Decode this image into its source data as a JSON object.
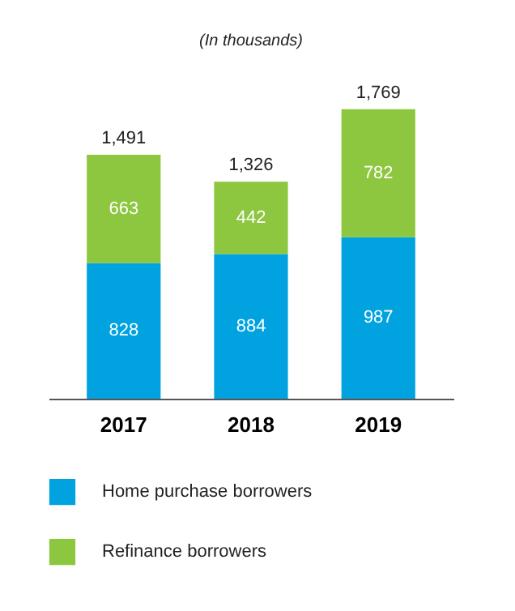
{
  "chart_data": {
    "type": "bar",
    "title": "(In thousands)",
    "categories": [
      "2017",
      "2018",
      "2019"
    ],
    "stacked": true,
    "data_labels": true,
    "legend": "bottom",
    "series": [
      {
        "name": "Home purchase borrowers",
        "color": "#00a3e0",
        "values": [
          828,
          884,
          987
        ]
      },
      {
        "name": "Refinance borrowers",
        "color": "#8dc63f",
        "values": [
          663,
          442,
          782
        ]
      }
    ],
    "totals": [
      "1,491",
      "1,326",
      "1,769"
    ]
  }
}
